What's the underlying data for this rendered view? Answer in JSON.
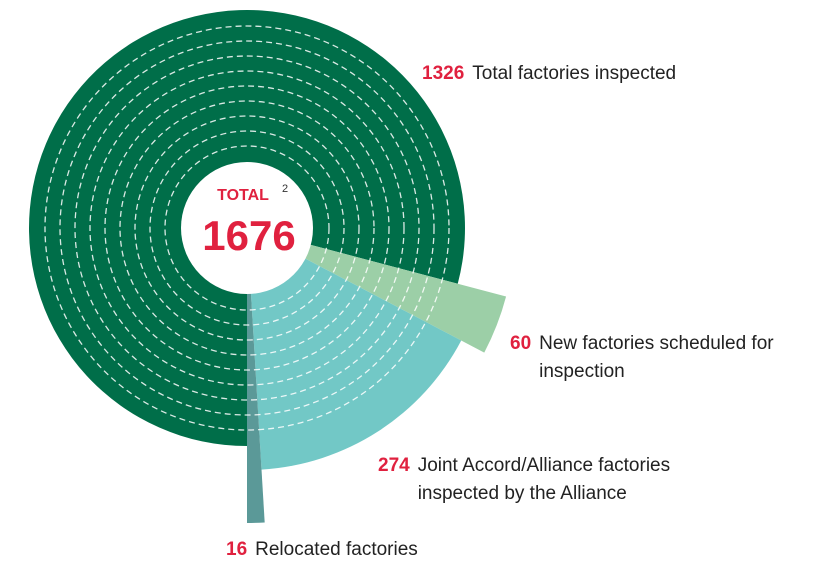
{
  "chart_data": {
    "type": "polar",
    "center_label": "TOTAL",
    "center_note": "2",
    "total": 1676,
    "categories": [
      "Total factories inspected",
      "New factories scheduled for inspection",
      "Joint Accord/Alliance factories inspected by the Alliance",
      "Relocated factories"
    ],
    "values": [
      1326,
      60,
      274,
      16
    ],
    "colors": [
      "#006e49",
      "#9ccfa7",
      "#72c8c6",
      "#5b9998"
    ],
    "value_color": "#e0213f"
  }
}
